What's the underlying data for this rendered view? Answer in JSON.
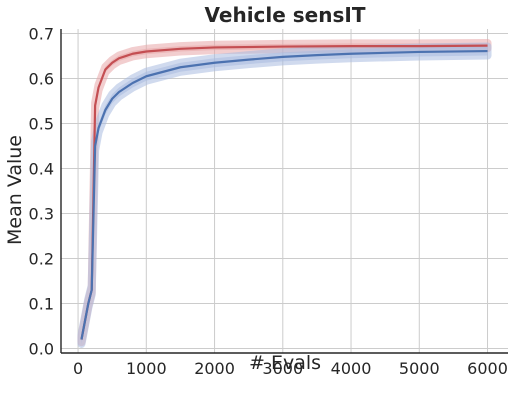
{
  "chart_data": {
    "type": "line",
    "title": "Vehicle sensIT",
    "xlabel": "# Evals",
    "ylabel": "Mean Value",
    "xlim": [
      -250,
      6300
    ],
    "ylim": [
      -0.01,
      0.71
    ],
    "xticks": [
      0,
      1000,
      2000,
      3000,
      4000,
      5000,
      6000
    ],
    "xtick_labels": [
      "0",
      "1000",
      "2000",
      "3000",
      "4000",
      "5000",
      "6000"
    ],
    "yticks": [
      0.0,
      0.1,
      0.2,
      0.3,
      0.4,
      0.5,
      0.6,
      0.7
    ],
    "ytick_labels": [
      "0.0",
      "0.1",
      "0.2",
      "0.3",
      "0.4",
      "0.5",
      "0.6",
      "0.7"
    ],
    "grid": true,
    "series": [
      {
        "color": "#c44e52",
        "band_color": "#e8a6a8",
        "band_halfwidth": 0.006,
        "x": [
          50,
          100,
          150,
          200,
          250,
          300,
          350,
          400,
          500,
          600,
          800,
          1000,
          1500,
          2000,
          3000,
          4000,
          5000,
          6000
        ],
        "y": [
          0.02,
          0.06,
          0.1,
          0.13,
          0.54,
          0.58,
          0.6,
          0.62,
          0.635,
          0.645,
          0.655,
          0.66,
          0.666,
          0.669,
          0.671,
          0.672,
          0.672,
          0.673
        ]
      },
      {
        "color": "#4c72b0",
        "band_color": "#a9bbe0",
        "band_halfwidth": 0.01,
        "x": [
          50,
          100,
          150,
          200,
          250,
          300,
          350,
          400,
          500,
          600,
          800,
          1000,
          1500,
          2000,
          2500,
          3000,
          3500,
          4000,
          5000,
          6000
        ],
        "y": [
          0.02,
          0.06,
          0.1,
          0.13,
          0.45,
          0.49,
          0.51,
          0.53,
          0.555,
          0.57,
          0.59,
          0.605,
          0.625,
          0.635,
          0.642,
          0.648,
          0.652,
          0.655,
          0.659,
          0.661
        ]
      }
    ]
  }
}
